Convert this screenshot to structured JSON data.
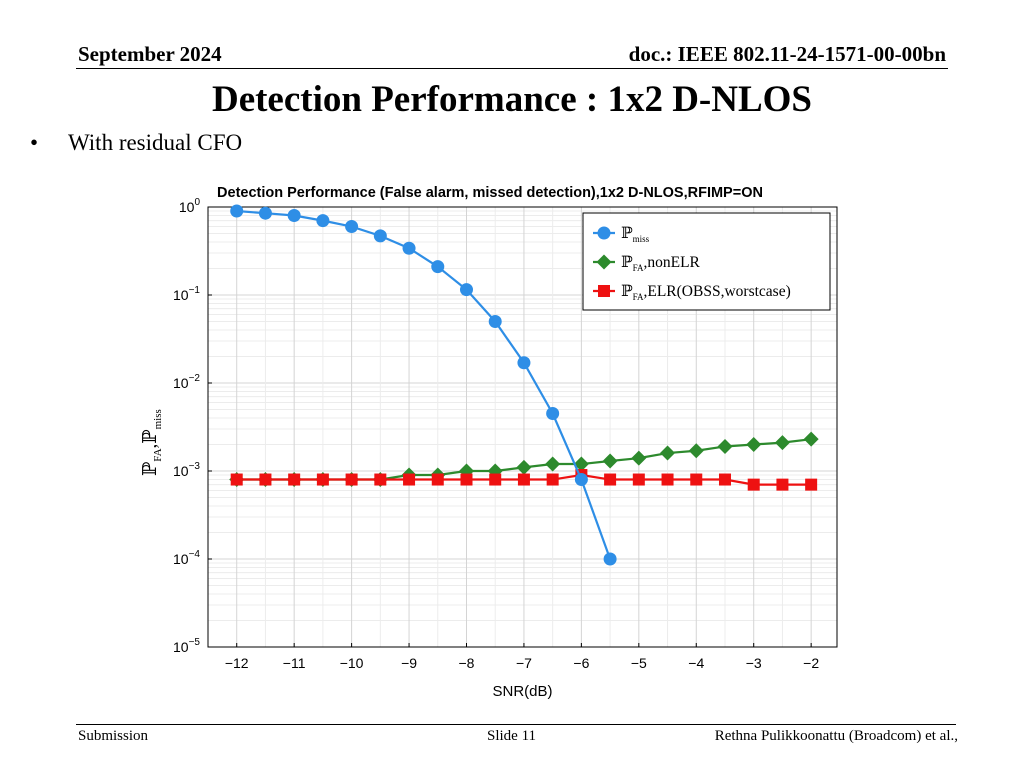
{
  "header": {
    "date": "September 2024",
    "doc": "doc.: IEEE 802.11-24-1571-00-00bn"
  },
  "slide": {
    "title": "Detection Performance : 1x2 D-NLOS",
    "bullet": "With residual CFO"
  },
  "footer": {
    "left": "Submission",
    "center": "Slide 11",
    "right": "Rethna Pulikkoonattu (Broadcom) et al.,"
  },
  "chart_data": {
    "type": "line",
    "title": "Detection Performance (False alarm, missed detection),1x2 D-NLOS,RFIMP=ON",
    "xlabel": "SNR(dB)",
    "ylabel": {
      "main1": "ℙ",
      "sub1": "FA",
      "sep": ",",
      "main2": "ℙ",
      "sub2": "miss"
    },
    "yscale": "log",
    "xlim": [
      -12.5,
      -1.55
    ],
    "ylim": [
      1e-05,
      1
    ],
    "x_ticks": [
      -12,
      -11,
      -10,
      -9,
      -8,
      -7,
      -6,
      -5,
      -4,
      -3,
      -2
    ],
    "x_tick_labels": [
      "−12",
      "−11",
      "−10",
      "−9",
      "−8",
      "−7",
      "−6",
      "−5",
      "−4",
      "−3",
      "−2"
    ],
    "y_ticks": [
      {
        "value": 1,
        "base": "10",
        "exp": "0"
      },
      {
        "value": 0.1,
        "base": "10",
        "exp": "−1"
      },
      {
        "value": 0.01,
        "base": "10",
        "exp": "−2"
      },
      {
        "value": 0.001,
        "base": "10",
        "exp": "−3"
      },
      {
        "value": 0.0001,
        "base": "10",
        "exp": "−4"
      },
      {
        "value": 1e-05,
        "base": "10",
        "exp": "−5"
      }
    ],
    "grid": true,
    "legend_position": "top-right",
    "series": [
      {
        "name": "P_miss",
        "legend": {
          "main": "ℙ",
          "sub": "miss",
          "rest": ""
        },
        "color": "#2e8ee6",
        "marker": "circle",
        "x": [
          -12,
          -11.5,
          -11,
          -10.5,
          -10,
          -9.5,
          -9,
          -8.5,
          -8,
          -7.5,
          -7,
          -6.5,
          -6,
          -5.5
        ],
        "values": [
          0.9,
          0.85,
          0.8,
          0.7,
          0.6,
          0.47,
          0.34,
          0.21,
          0.115,
          0.05,
          0.017,
          0.0045,
          0.0008,
          0.0001
        ]
      },
      {
        "name": "P_FA nonELR",
        "legend": {
          "main": "ℙ",
          "sub": "FA",
          "rest": ",nonELR"
        },
        "color": "#2d8a2d",
        "marker": "diamond",
        "x": [
          -12,
          -11.5,
          -11,
          -10.5,
          -10,
          -9.5,
          -9,
          -8.5,
          -8,
          -7.5,
          -7,
          -6.5,
          -6,
          -5.5,
          -5,
          -4.5,
          -4,
          -3.5,
          -3,
          -2.5,
          -2
        ],
        "values": [
          0.0008,
          0.0008,
          0.0008,
          0.0008,
          0.0008,
          0.0008,
          0.0009,
          0.0009,
          0.001,
          0.001,
          0.0011,
          0.0012,
          0.0012,
          0.0013,
          0.0014,
          0.0016,
          0.0017,
          0.0019,
          0.002,
          0.0021,
          0.0023
        ]
      },
      {
        "name": "P_FA ELR (OBSS, worstcase)",
        "legend": {
          "main": "ℙ",
          "sub": "FA",
          "rest": ",ELR(OBSS,worstcase)"
        },
        "color": "#ee1111",
        "marker": "square",
        "x": [
          -12,
          -11.5,
          -11,
          -10.5,
          -10,
          -9.5,
          -9,
          -8.5,
          -8,
          -7.5,
          -7,
          -6.5,
          -6,
          -5.5,
          -5,
          -4.5,
          -4,
          -3.5,
          -3,
          -2.5,
          -2
        ],
        "values": [
          0.0008,
          0.0008,
          0.0008,
          0.0008,
          0.0008,
          0.0008,
          0.0008,
          0.0008,
          0.0008,
          0.0008,
          0.0008,
          0.0008,
          0.0009,
          0.0008,
          0.0008,
          0.0008,
          0.0008,
          0.0008,
          0.0007,
          0.0007,
          0.0007
        ]
      }
    ]
  }
}
